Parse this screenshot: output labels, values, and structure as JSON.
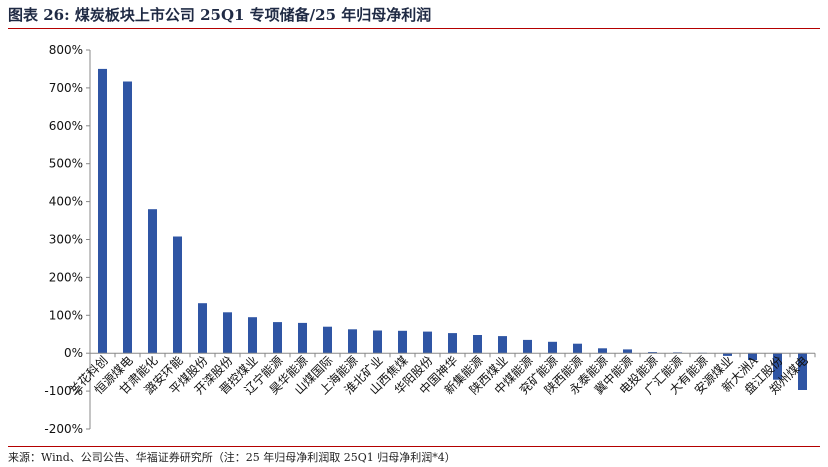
{
  "header": {
    "title": "图表 26:  煤炭板块上市公司 25Q1 专项储备/25 年归母净利润"
  },
  "footer": {
    "source": "来源：Wind、公司公告、华福证券研究所（注：25 年归母净利润取 25Q1 归母净利润*4）"
  },
  "colors": {
    "bar": "#2f55a4",
    "axis": "#888888",
    "title": "#1f2a44"
  },
  "chart_data": {
    "type": "bar",
    "title": "",
    "xlabel": "",
    "ylabel": "",
    "ylim": [
      -200,
      800
    ],
    "yticks": [
      -200,
      -100,
      0,
      100,
      200,
      300,
      400,
      500,
      600,
      700,
      800
    ],
    "ytick_labels": [
      "-200%",
      "-100%",
      "0%",
      "100%",
      "200%",
      "300%",
      "400%",
      "500%",
      "600%",
      "700%",
      "800%"
    ],
    "grid": false,
    "categories": [
      "兰花科创",
      "恒源煤电",
      "甘肃能化",
      "潞安环能",
      "平煤股份",
      "开滦股份",
      "晋控煤业",
      "辽宁能源",
      "昊华能源",
      "山煤国际",
      "上海能源",
      "淮北矿业",
      "山西焦煤",
      "华阳股份",
      "中国神华",
      "新集能源",
      "陕西煤业",
      "中煤能源",
      "兖矿能源",
      "陕西能源",
      "永泰能源",
      "冀中能源",
      "电投能源",
      "广汇能源",
      "大有能源",
      "安源煤业",
      "新大洲A",
      "盘江股份",
      "郑州煤电"
    ],
    "values": [
      750,
      717,
      380,
      308,
      132,
      108,
      95,
      82,
      80,
      70,
      63,
      60,
      59,
      57,
      53,
      48,
      45,
      35,
      30,
      25,
      13,
      10,
      3,
      2,
      1,
      -7,
      -18,
      -70,
      -97
    ]
  }
}
